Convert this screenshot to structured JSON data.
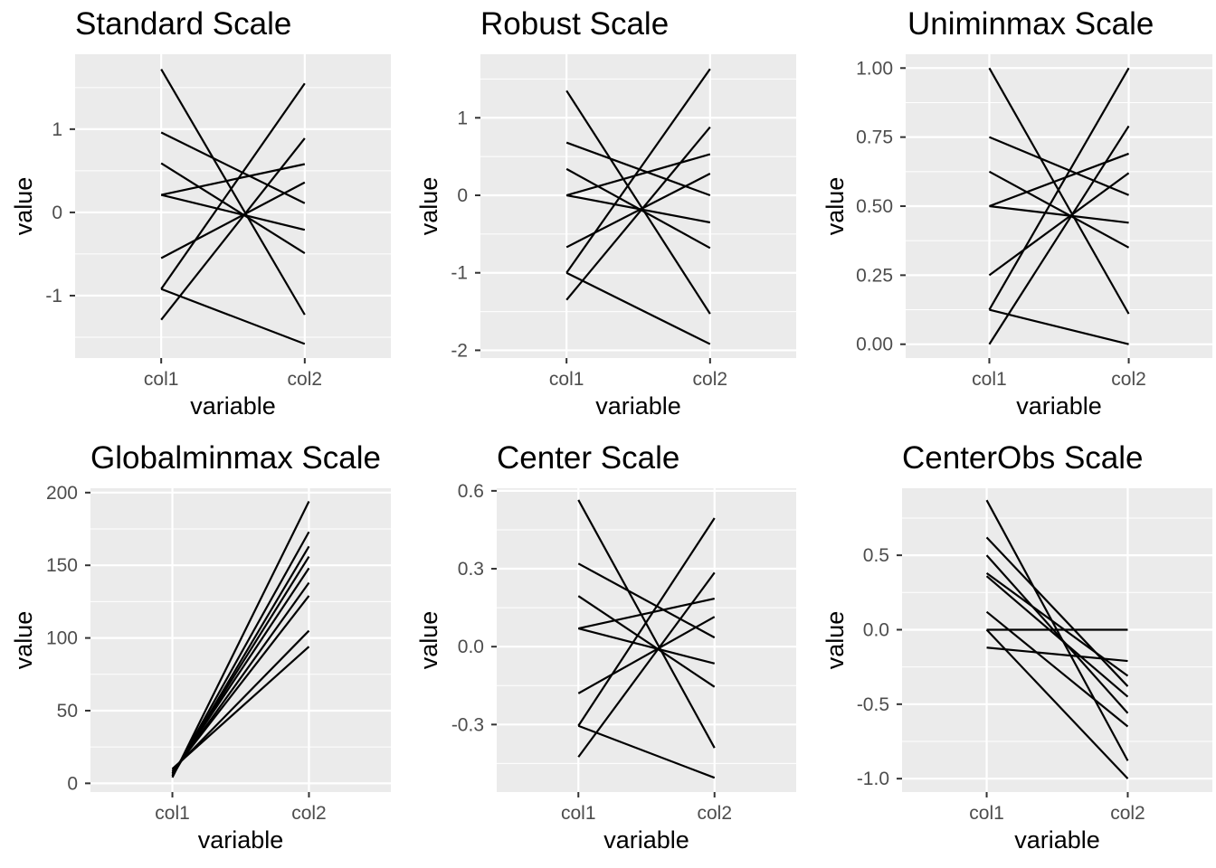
{
  "figure": {
    "background": "#ffffff",
    "panel_background": "#ebebeb",
    "grid_color": "#ffffff",
    "line_color": "#000000"
  },
  "chart_data": [
    {
      "type": "line",
      "title": "Standard Scale",
      "xlabel": "variable",
      "ylabel": "value",
      "categories": [
        "col1",
        "col2"
      ],
      "ylim": [
        -1.75,
        1.9
      ],
      "yticks": [
        -1,
        0,
        1
      ],
      "ytick_labels": [
        "-1",
        "0",
        "1"
      ],
      "series": [
        {
          "values": [
            1.72,
            -1.23
          ]
        },
        {
          "values": [
            0.96,
            0.11
          ]
        },
        {
          "values": [
            0.59,
            -0.49
          ]
        },
        {
          "values": [
            0.21,
            -0.21
          ]
        },
        {
          "values": [
            0.21,
            0.58
          ]
        },
        {
          "values": [
            -0.55,
            0.36
          ]
        },
        {
          "values": [
            -0.92,
            1.55
          ]
        },
        {
          "values": [
            -0.92,
            -1.58
          ]
        },
        {
          "values": [
            -1.29,
            0.89
          ]
        }
      ]
    },
    {
      "type": "line",
      "title": "Robust Scale",
      "xlabel": "variable",
      "ylabel": "value",
      "categories": [
        "col1",
        "col2"
      ],
      "ylim": [
        -2.1,
        1.82
      ],
      "yticks": [
        -2,
        -1,
        0,
        1
      ],
      "ytick_labels": [
        "-2",
        "-1",
        "0",
        "1"
      ],
      "series": [
        {
          "values": [
            1.35,
            -1.53
          ]
        },
        {
          "values": [
            0.68,
            0.0
          ]
        },
        {
          "values": [
            0.34,
            -0.68
          ]
        },
        {
          "values": [
            0.0,
            -0.35
          ]
        },
        {
          "values": [
            0.0,
            0.53
          ]
        },
        {
          "values": [
            -0.67,
            0.28
          ]
        },
        {
          "values": [
            -1.0,
            1.63
          ]
        },
        {
          "values": [
            -1.0,
            -1.92
          ]
        },
        {
          "values": [
            -1.35,
            0.88
          ]
        }
      ]
    },
    {
      "type": "line",
      "title": "Uniminmax Scale",
      "xlabel": "variable",
      "ylabel": "value",
      "categories": [
        "col1",
        "col2"
      ],
      "ylim": [
        -0.05,
        1.05
      ],
      "yticks": [
        0,
        0.25,
        0.5,
        0.75,
        1
      ],
      "ytick_labels": [
        "0.00",
        "0.25",
        "0.50",
        "0.75",
        "1.00"
      ],
      "series": [
        {
          "values": [
            1.0,
            0.11
          ]
        },
        {
          "values": [
            0.75,
            0.54
          ]
        },
        {
          "values": [
            0.625,
            0.35
          ]
        },
        {
          "values": [
            0.5,
            0.44
          ]
        },
        {
          "values": [
            0.5,
            0.69
          ]
        },
        {
          "values": [
            0.25,
            0.62
          ]
        },
        {
          "values": [
            0.125,
            1.0
          ]
        },
        {
          "values": [
            0.125,
            0.0
          ]
        },
        {
          "values": [
            0.0,
            0.79
          ]
        }
      ]
    },
    {
      "type": "line",
      "title": "Globalminmax Scale",
      "xlabel": "variable",
      "ylabel": "value",
      "categories": [
        "col1",
        "col2"
      ],
      "ylim": [
        -6,
        203
      ],
      "yticks": [
        0,
        50,
        100,
        150,
        200
      ],
      "ytick_labels": [
        "0",
        "50",
        "100",
        "150",
        "200"
      ],
      "series": [
        {
          "values": [
            10,
            94
          ]
        },
        {
          "values": [
            9,
            105
          ]
        },
        {
          "values": [
            8,
            129
          ]
        },
        {
          "values": [
            7,
            138
          ]
        },
        {
          "values": [
            7,
            148
          ]
        },
        {
          "values": [
            6,
            156
          ]
        },
        {
          "values": [
            5,
            163
          ]
        },
        {
          "values": [
            5,
            173
          ]
        },
        {
          "values": [
            4,
            194
          ]
        }
      ]
    },
    {
      "type": "line",
      "title": "Center Scale",
      "xlabel": "variable",
      "ylabel": "value",
      "categories": [
        "col1",
        "col2"
      ],
      "ylim": [
        -0.56,
        0.61
      ],
      "yticks": [
        -0.3,
        0,
        0.3,
        0.6
      ],
      "ytick_labels": [
        "-0.3",
        "0.0",
        "0.3",
        "0.6"
      ],
      "series": [
        {
          "values": [
            0.565,
            -0.39
          ]
        },
        {
          "values": [
            0.32,
            0.035
          ]
        },
        {
          "values": [
            0.195,
            -0.155
          ]
        },
        {
          "values": [
            0.07,
            -0.065
          ]
        },
        {
          "values": [
            0.07,
            0.185
          ]
        },
        {
          "values": [
            -0.18,
            0.115
          ]
        },
        {
          "values": [
            -0.305,
            0.495
          ]
        },
        {
          "values": [
            -0.305,
            -0.505
          ]
        },
        {
          "values": [
            -0.425,
            0.285
          ]
        }
      ]
    },
    {
      "type": "line",
      "title": "CenterObs Scale",
      "xlabel": "variable",
      "ylabel": "value",
      "categories": [
        "col1",
        "col2"
      ],
      "ylim": [
        -1.09,
        0.95
      ],
      "yticks": [
        -1,
        -0.5,
        0,
        0.5
      ],
      "ytick_labels": [
        "-1.0",
        "-0.5",
        "0.0",
        "0.5"
      ],
      "series": [
        {
          "values": [
            0.87,
            -0.88
          ]
        },
        {
          "values": [
            0.62,
            -0.38
          ]
        },
        {
          "values": [
            0.5,
            -0.56
          ]
        },
        {
          "values": [
            0.38,
            -0.31
          ]
        },
        {
          "values": [
            0.36,
            -0.45
          ]
        },
        {
          "values": [
            0.12,
            -0.65
          ]
        },
        {
          "values": [
            0.0,
            0.0
          ]
        },
        {
          "values": [
            0.0,
            -1.0
          ]
        },
        {
          "values": [
            -0.12,
            -0.21
          ]
        }
      ]
    }
  ]
}
